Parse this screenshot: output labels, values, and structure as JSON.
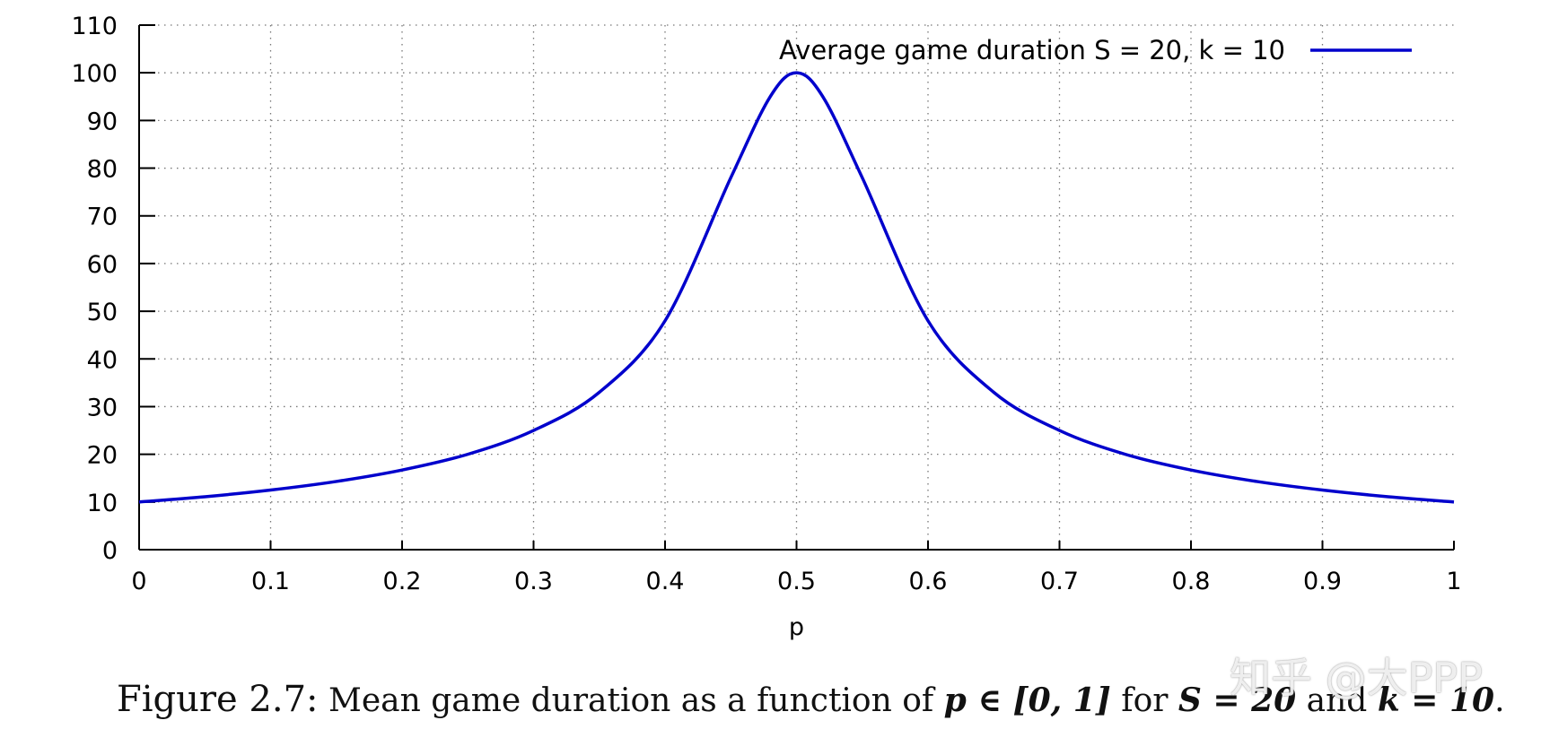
{
  "chart_data": {
    "type": "line",
    "title": "",
    "xlabel": "p",
    "ylabel": "",
    "xlim": [
      0,
      1
    ],
    "ylim": [
      0,
      110
    ],
    "xticks": [
      "0",
      "0.1",
      "0.2",
      "0.3",
      "0.4",
      "0.5",
      "0.6",
      "0.7",
      "0.8",
      "0.9",
      "1"
    ],
    "yticks": [
      "0",
      "10",
      "20",
      "30",
      "40",
      "50",
      "60",
      "70",
      "80",
      "90",
      "100",
      "110"
    ],
    "grid": true,
    "legend_position": "top-right",
    "series": [
      {
        "name": "Average game duration S = 20, k = 10",
        "color": "#0000cc",
        "x": [
          0,
          0.05,
          0.1,
          0.15,
          0.2,
          0.25,
          0.3,
          0.35,
          0.4,
          0.45,
          0.48,
          0.5,
          0.52,
          0.55,
          0.6,
          0.65,
          0.7,
          0.75,
          0.8,
          0.85,
          0.9,
          0.95,
          1
        ],
        "y": [
          10,
          11.1,
          12.5,
          14.3,
          16.7,
          20,
          25,
          33,
          48,
          78,
          95,
          100,
          95,
          78,
          48,
          33,
          25,
          20,
          16.7,
          14.3,
          12.5,
          11.1,
          10
        ]
      }
    ]
  },
  "caption": {
    "label": "Figure 2.7:",
    "text_1": " Mean game duration as a function of ",
    "math_p": "p ∈ [0, 1]",
    "text_2": " for ",
    "math_s": "S = 20",
    "text_3": " and ",
    "math_k": "k = 10",
    "text_4": "."
  },
  "watermark": {
    "text": "知乎 @大PPP"
  }
}
